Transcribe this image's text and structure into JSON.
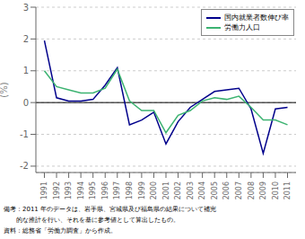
{
  "chart_data": {
    "type": "line",
    "x": [
      1991,
      1992,
      1993,
      1994,
      1995,
      1996,
      1997,
      1998,
      1999,
      2000,
      2001,
      2002,
      2003,
      2004,
      2005,
      2006,
      2007,
      2008,
      2009,
      2010,
      2011
    ],
    "series": [
      {
        "name": "国内就業者数伸び率",
        "color": "#00008B",
        "values": [
          1.95,
          0.15,
          0.05,
          0.05,
          0.1,
          0.55,
          1.1,
          -0.7,
          -0.55,
          -0.3,
          -1.3,
          -0.6,
          -0.15,
          0.1,
          0.35,
          0.4,
          0.45,
          -0.2,
          -1.6,
          -0.2,
          -0.15
        ]
      },
      {
        "name": "労働力人口",
        "color": "#3CB371",
        "values": [
          1.0,
          0.5,
          0.4,
          0.3,
          0.3,
          0.45,
          1.05,
          0.05,
          -0.25,
          -0.25,
          -0.95,
          -0.4,
          -0.25,
          0.05,
          0.15,
          0.1,
          0.2,
          -0.15,
          -0.55,
          -0.55,
          -0.7
        ]
      }
    ],
    "xlim": [
      1990.3,
      2011.7
    ],
    "xticks": [
      1991,
      1992,
      1993,
      1994,
      1995,
      1996,
      1997,
      1998,
      1999,
      2000,
      2001,
      2002,
      2003,
      2004,
      2005,
      2006,
      2007,
      2008,
      2009,
      2010,
      2011
    ],
    "ylim": [
      -2.2,
      3.0
    ],
    "yticks": [
      -2,
      -1,
      0,
      1,
      2,
      3
    ],
    "ylabel": "(%)",
    "grid": true,
    "legend": "upper right",
    "annotations": [
      "備考：2011 年のデータは、岩手県、宮城県及び福島県の結果について補完",
      "　　的な推計を行い、それを基に参考値として算出したもの。",
      "資料：総務省「労働力調査」から作成。"
    ]
  }
}
